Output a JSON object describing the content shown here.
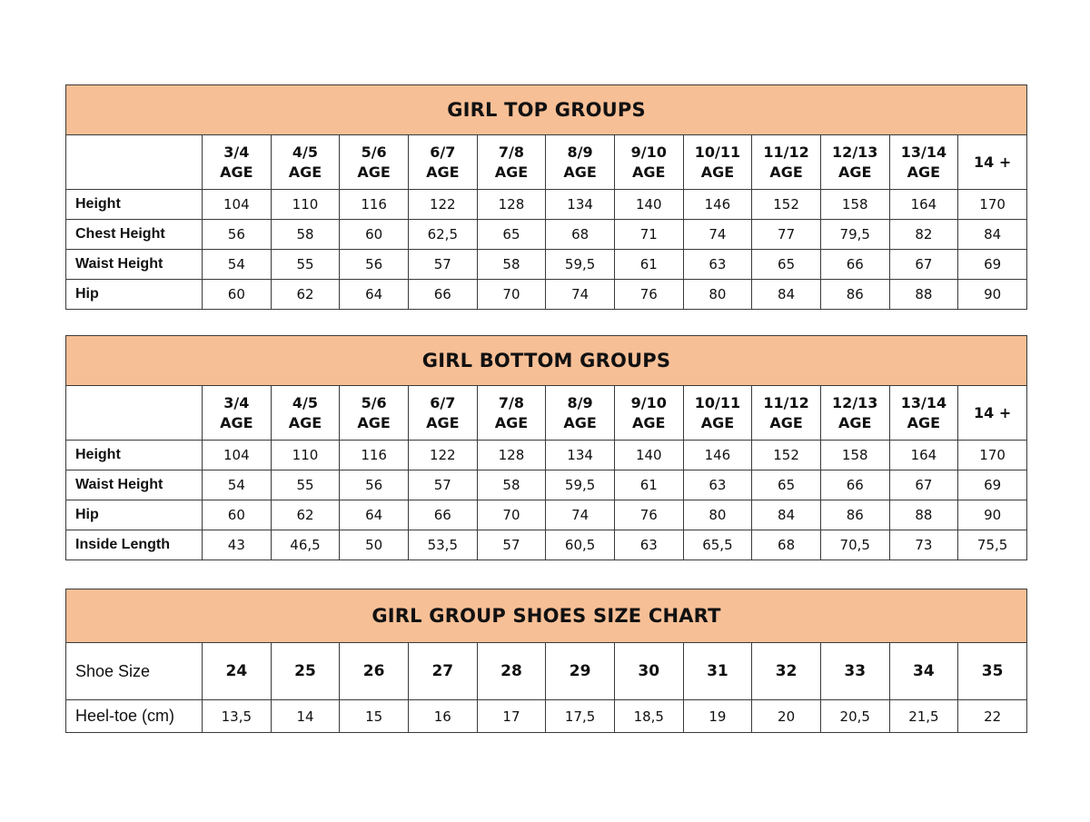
{
  "tables": [
    {
      "title": "GIRL TOP GROUPS",
      "columns": [
        "3/4|AGE",
        "4/5|AGE",
        "5/6|AGE",
        "6/7|AGE",
        "7/8|AGE",
        "8/9|AGE",
        "9/10|AGE",
        "10/11|AGE",
        "11/12|AGE",
        "12/13|AGE",
        "13/14|AGE",
        "14 +"
      ],
      "rows": [
        {
          "label": "Height",
          "values": [
            "104",
            "110",
            "116",
            "122",
            "128",
            "134",
            "140",
            "146",
            "152",
            "158",
            "164",
            "170"
          ]
        },
        {
          "label": "Chest Height",
          "values": [
            "56",
            "58",
            "60",
            "62,5",
            "65",
            "68",
            "71",
            "74",
            "77",
            "79,5",
            "82",
            "84"
          ]
        },
        {
          "label": "Waist Height",
          "values": [
            "54",
            "55",
            "56",
            "57",
            "58",
            "59,5",
            "61",
            "63",
            "65",
            "66",
            "67",
            "69"
          ]
        },
        {
          "label": "Hip",
          "values": [
            "60",
            "62",
            "64",
            "66",
            "70",
            "74",
            "76",
            "80",
            "84",
            "86",
            "88",
            "90"
          ]
        }
      ]
    },
    {
      "title": "GIRL BOTTOM GROUPS",
      "columns": [
        "3/4|AGE",
        "4/5|AGE",
        "5/6|AGE",
        "6/7|AGE",
        "7/8|AGE",
        "8/9|AGE",
        "9/10|AGE",
        "10/11|AGE",
        "11/12|AGE",
        "12/13|AGE",
        "13/14|AGE",
        "14 +"
      ],
      "rows": [
        {
          "label": "Height",
          "values": [
            "104",
            "110",
            "116",
            "122",
            "128",
            "134",
            "140",
            "146",
            "152",
            "158",
            "164",
            "170"
          ]
        },
        {
          "label": "Waist Height",
          "values": [
            "54",
            "55",
            "56",
            "57",
            "58",
            "59,5",
            "61",
            "63",
            "65",
            "66",
            "67",
            "69"
          ]
        },
        {
          "label": "Hip",
          "values": [
            "60",
            "62",
            "64",
            "66",
            "70",
            "74",
            "76",
            "80",
            "84",
            "86",
            "88",
            "90"
          ]
        },
        {
          "label": "Inside Length",
          "values": [
            "43",
            "46,5",
            "50",
            "53,5",
            "57",
            "60,5",
            "63",
            "65,5",
            "68",
            "70,5",
            "73",
            "75,5"
          ]
        }
      ]
    }
  ],
  "shoes": {
    "title": "GIRL GROUP SHOES SIZE CHART",
    "size_row": {
      "label": "Shoe Size",
      "values": [
        "24",
        "25",
        "26",
        "27",
        "28",
        "29",
        "30",
        "31",
        "32",
        "33",
        "34",
        "35"
      ]
    },
    "heel_row": {
      "label": "Heel-toe (cm)",
      "values": [
        "13,5",
        "14",
        "15",
        "16",
        "17",
        "17,5",
        "18,5",
        "19",
        "20",
        "20,5",
        "21,5",
        "22"
      ]
    }
  },
  "colors": {
    "header_bg": "#f7bf96",
    "border": "#3a3a3a"
  }
}
